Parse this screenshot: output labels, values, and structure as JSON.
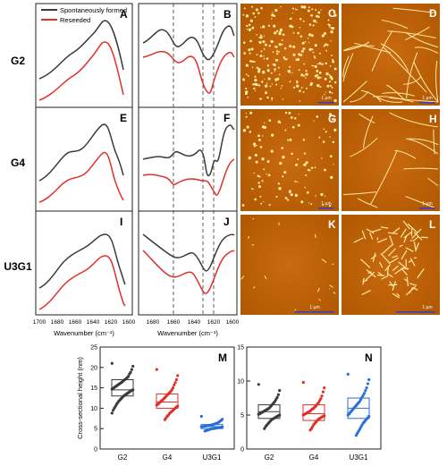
{
  "figure": {
    "legend": {
      "spont": "Spontaneously formed",
      "reseed": "Reseeded"
    },
    "row_labels": [
      "G2",
      "G4",
      "U3G1"
    ],
    "panel_letters": [
      "A",
      "B",
      "C",
      "D",
      "E",
      "F",
      "G",
      "H",
      "I",
      "J",
      "K",
      "L",
      "M",
      "N"
    ],
    "xaxis_title": "Wavenumber (cm⁻¹)",
    "ticks_ABC": [
      "1700",
      "1680",
      "1660",
      "1640",
      "1620",
      "1600"
    ],
    "ticks_B": [
      "1680",
      "1660",
      "1640",
      "1620",
      "1600"
    ],
    "scale_bar": "1 µm",
    "colors": {
      "spont": "#3a3a3a",
      "reseed": "#e0302a",
      "afm_dark": "#a04a00",
      "afm_bright": "#ffe9a0"
    }
  },
  "chart_data": [
    {
      "panel": "M",
      "type": "scatter",
      "title": "",
      "xlabel": "",
      "ylabel": "Cross-sectional height (nm)",
      "categories": [
        "G2",
        "G4",
        "U3G1"
      ],
      "ylim": [
        0,
        25
      ],
      "yticks": [
        "0",
        "5",
        "10",
        "15",
        "20",
        "25"
      ],
      "series": [
        {
          "color": "#3a3a3a",
          "box": {
            "q1": 13,
            "median": 14.5,
            "q3": 17
          },
          "values": [
            21,
            20.3,
            19.5,
            18.8,
            18.4,
            17.8,
            17.5,
            17.2,
            17,
            16.8,
            16.5,
            16.3,
            16.1,
            15.9,
            15.7,
            15.5,
            15.3,
            15.1,
            14.9,
            14.7,
            14.5,
            14.4,
            14.2,
            14,
            13.8,
            13.6,
            13.4,
            13.2,
            13,
            12.7,
            12.4,
            12.1,
            11.8,
            11.4,
            11,
            10.5,
            10,
            9.5,
            8.8
          ]
        },
        {
          "color": "#e0302a",
          "box": {
            "q1": 10,
            "median": 11.5,
            "q3": 13.5
          },
          "values": [
            19.5,
            18,
            17,
            16.3,
            15.7,
            15,
            14.5,
            14.1,
            13.8,
            13.5,
            13.2,
            12.9,
            12.6,
            12.3,
            12,
            11.8,
            11.5,
            11.2,
            11,
            10.8,
            10.5,
            10.3,
            10,
            9.8,
            9.5,
            9.2,
            9,
            8.7,
            8.3,
            8,
            7.6,
            7.2
          ]
        },
        {
          "color": "#2a6fd6",
          "box": {
            "q1": 5,
            "median": 5.5,
            "q3": 6
          },
          "values": [
            8,
            7.3,
            7,
            6.8,
            6.6,
            6.4,
            6.3,
            6.2,
            6.1,
            6,
            5.9,
            5.85,
            5.8,
            5.75,
            5.7,
            5.65,
            5.6,
            5.55,
            5.5,
            5.45,
            5.4,
            5.35,
            5.3,
            5.25,
            5.2,
            5.15,
            5.1,
            5.05,
            5,
            4.95,
            4.9,
            4.8,
            4.7,
            4.6,
            4.5,
            4.4
          ]
        }
      ]
    },
    {
      "panel": "N",
      "type": "scatter",
      "title": "",
      "xlabel": "",
      "ylabel": "",
      "categories": [
        "G2",
        "G4",
        "U3G1"
      ],
      "ylim": [
        0,
        15
      ],
      "yticks": [
        "0",
        "5",
        "10",
        "15"
      ],
      "series": [
        {
          "color": "#3a3a3a",
          "box": {
            "q1": 4.5,
            "median": 5.5,
            "q3": 6.5
          },
          "values": [
            9.5,
            8.6,
            8,
            7.6,
            7.3,
            7,
            6.8,
            6.6,
            6.4,
            6.2,
            6,
            5.9,
            5.8,
            5.7,
            5.6,
            5.5,
            5.4,
            5.3,
            5.2,
            5.1,
            5,
            4.9,
            4.8,
            4.7,
            4.6,
            4.5,
            4.4,
            4.3,
            4.1,
            3.9,
            3.7,
            3.5,
            3.3,
            3
          ]
        },
        {
          "color": "#e0302a",
          "box": {
            "q1": 4.2,
            "median": 5.2,
            "q3": 6.5
          },
          "values": [
            9.8,
            9,
            8.4,
            7.8,
            7.4,
            7.1,
            6.8,
            6.6,
            6.4,
            6.2,
            6,
            5.9,
            5.8,
            5.6,
            5.5,
            5.4,
            5.3,
            5.2,
            5.1,
            5,
            4.9,
            4.8,
            4.7,
            4.6,
            4.5,
            4.4,
            4.2,
            4,
            3.8,
            3.6,
            3.3,
            3,
            2.8
          ]
        },
        {
          "color": "#2a6fd6",
          "box": {
            "q1": 4.5,
            "median": 6,
            "q3": 7.5
          },
          "values": [
            11,
            10.2,
            9.6,
            9,
            8.6,
            8.2,
            7.9,
            7.6,
            7.3,
            7,
            6.8,
            6.6,
            6.4,
            6.2,
            6,
            5.8,
            5.6,
            5.4,
            5.2,
            5,
            4.8,
            4.6,
            4.4,
            4.2,
            4,
            3.8,
            3.5,
            3.2,
            2.9,
            2.6,
            2.3,
            2
          ]
        }
      ]
    }
  ]
}
